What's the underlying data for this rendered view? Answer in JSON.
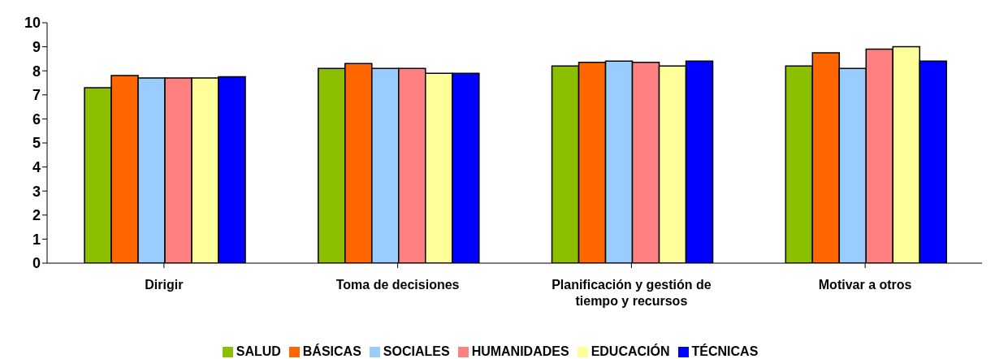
{
  "chart_data": {
    "type": "bar",
    "categories": [
      "Dirigir",
      "Toma de decisiones",
      "Planificación y gestión de tiempo y recursos",
      "Motivar a otros"
    ],
    "series": [
      {
        "name": "SALUD",
        "color": "#8cbf00",
        "values": [
          7.3,
          8.1,
          8.2,
          8.2
        ]
      },
      {
        "name": "BÁSICAS",
        "color": "#ff6600",
        "values": [
          7.8,
          8.3,
          8.35,
          8.75
        ]
      },
      {
        "name": "SOCIALES",
        "color": "#99ccff",
        "values": [
          7.7,
          8.1,
          8.4,
          8.1
        ]
      },
      {
        "name": "HUMANIDADES",
        "color": "#ff8080",
        "values": [
          7.7,
          8.1,
          8.35,
          8.9
        ]
      },
      {
        "name": "EDUCACIÓN",
        "color": "#ffff99",
        "values": [
          7.7,
          7.9,
          8.2,
          9.0
        ]
      },
      {
        "name": "TÉCNICAS",
        "color": "#0000ff",
        "values": [
          7.75,
          7.9,
          8.4,
          8.4
        ]
      }
    ],
    "ylim": [
      0,
      10
    ],
    "yticks": [
      0,
      1,
      2,
      3,
      4,
      5,
      6,
      7,
      8,
      9,
      10
    ],
    "grid": false,
    "legend": "bottom"
  }
}
